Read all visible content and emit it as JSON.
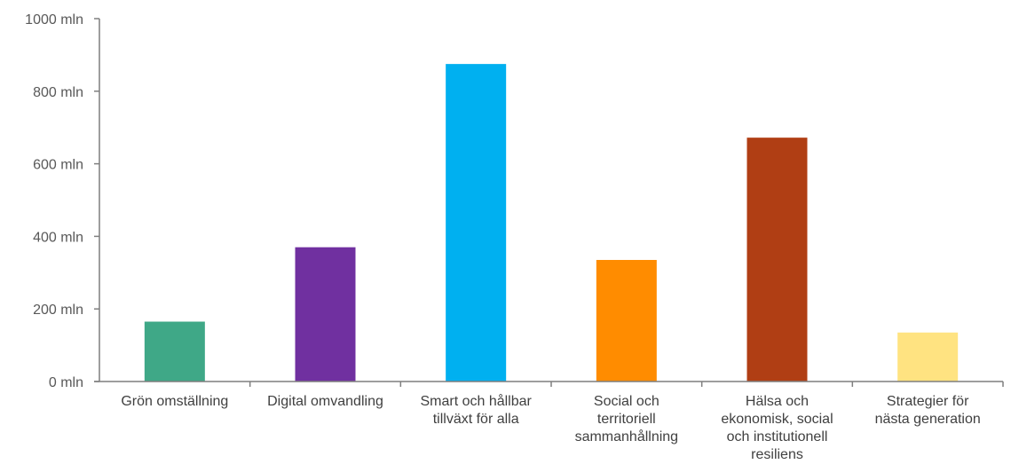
{
  "chart_data": {
    "type": "bar",
    "title": "",
    "xlabel": "",
    "ylabel": "",
    "ylim": [
      0,
      1000
    ],
    "yticks": [
      0,
      200,
      400,
      600,
      800,
      1000
    ],
    "ytick_labels": [
      "0 mln",
      "200 mln",
      "400 mln",
      "600 mln",
      "800 mln",
      "1000 mln"
    ],
    "grid": false,
    "legend": "none",
    "categories": [
      [
        "Grön omställning"
      ],
      [
        "Digital omvandling"
      ],
      [
        "Smart och hållbar",
        "tillväxt för alla"
      ],
      [
        "Social och",
        "territoriell",
        "sammanhållning"
      ],
      [
        "Hälsa och",
        "ekonomisk, social",
        "och institutionell",
        "resiliens"
      ],
      [
        "Strategier för",
        "nästa generation"
      ]
    ],
    "values": [
      165,
      370,
      875,
      335,
      672,
      135
    ],
    "colors": [
      "#3fa887",
      "#7030a0",
      "#00b0f0",
      "#ff8c00",
      "#b03e14",
      "#ffe381"
    ]
  }
}
